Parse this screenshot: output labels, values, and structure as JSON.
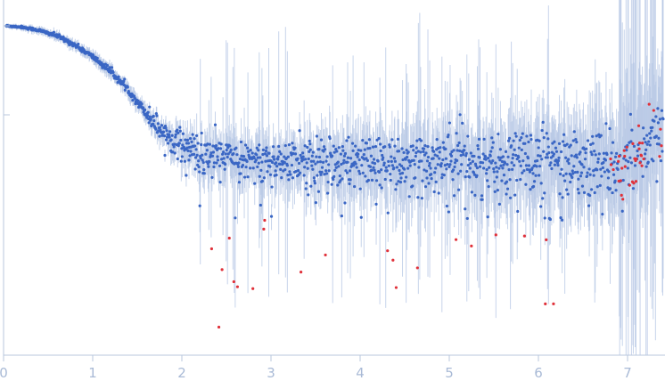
{
  "chart_data": {
    "type": "scatter",
    "title": "",
    "xlabel": "",
    "ylabel": "",
    "xlim": [
      0,
      7.4
    ],
    "y_scale": "log",
    "x_ticks": [
      "0",
      "1",
      "2",
      "3",
      "4",
      "5",
      "6",
      "7"
    ],
    "x_tick_values": [
      0,
      1,
      2,
      3,
      4,
      5,
      6,
      7
    ],
    "y_tick_values_unlabeled": [
      1,
      0.1
    ],
    "grid": false,
    "legend": "none",
    "colors": {
      "points": "#3a66c4",
      "outliers": "#e0313a",
      "error_bars": "#b4c6e4",
      "axis": "#b9c7de",
      "tick_text": "#a9bad6"
    },
    "series": [
      {
        "role": "scattering profile with error bars",
        "points_approx": [
          [
            0.03,
            1.0
          ],
          [
            0.2,
            0.97
          ],
          [
            0.4,
            0.89
          ],
          [
            0.6,
            0.77
          ],
          [
            0.8,
            0.61
          ],
          [
            1.0,
            0.45
          ],
          [
            1.2,
            0.31
          ],
          [
            1.4,
            0.19
          ],
          [
            1.6,
            0.105
          ],
          [
            1.8,
            0.062
          ],
          [
            2.0,
            0.046
          ],
          [
            2.2,
            0.036
          ],
          [
            2.5,
            0.031
          ],
          [
            3.0,
            0.029
          ],
          [
            3.5,
            0.03
          ],
          [
            4.0,
            0.031
          ],
          [
            4.5,
            0.031
          ],
          [
            5.0,
            0.031
          ],
          [
            5.5,
            0.03
          ],
          [
            6.0,
            0.029
          ],
          [
            6.5,
            0.028
          ],
          [
            7.0,
            0.029
          ],
          [
            7.2,
            0.042
          ],
          [
            7.4,
            0.075
          ]
        ]
      }
    ]
  }
}
